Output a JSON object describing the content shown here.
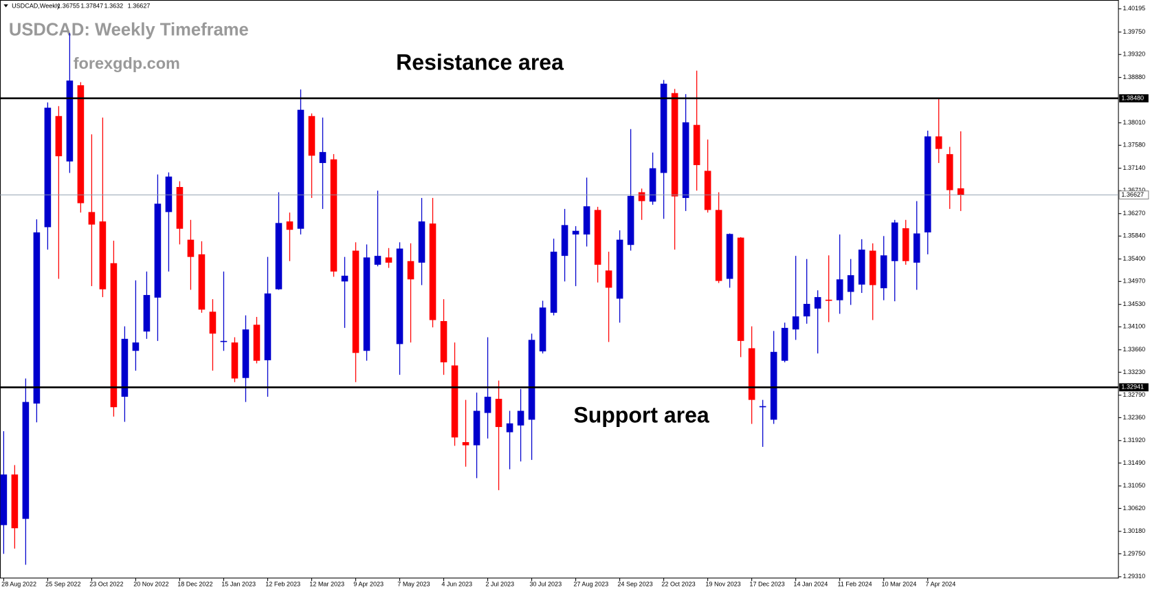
{
  "chart_data": {
    "type": "candlestick",
    "title": "USDCAD: Weekly Timeframe",
    "subtitle": "forexgdp.com",
    "symbol": "USDCAD,Weekly",
    "categories": [
      "28 Aug 2022",
      null,
      null,
      null,
      "25 Sep 2022",
      null,
      null,
      null,
      "23 Oct 2022",
      null,
      null,
      null,
      "20 Nov 2022",
      null,
      null,
      null,
      "18 Dec 2022",
      null,
      null,
      null,
      "15 Jan 2023",
      null,
      null,
      null,
      "12 Feb 2023",
      null,
      null,
      null,
      "12 Mar 2023",
      null,
      null,
      null,
      "9 Apr 2023",
      null,
      null,
      null,
      "7 May 2023",
      null,
      null,
      null,
      "4 Jun 2023",
      null,
      null,
      null,
      "2 Jul 2023",
      null,
      null,
      null,
      "30 Jul 2023",
      null,
      null,
      null,
      "27 Aug 2023",
      null,
      null,
      null,
      "24 Sep 2023",
      null,
      null,
      null,
      "22 Oct 2023",
      null,
      null,
      null,
      "19 Nov 2023",
      null,
      null,
      null,
      "17 Dec 2023",
      null,
      null,
      null,
      "14 Jan 2024",
      null,
      null,
      null,
      "11 Feb 2024",
      null,
      null,
      null,
      "10 Mar 2024",
      null,
      null,
      null,
      "7 Apr 2024",
      null,
      null,
      null
    ],
    "series": [
      {
        "up_color": "#0000cd",
        "down_color": "#ff0000",
        "open": [
          1.303,
          1.3127,
          1.3042,
          1.3263,
          1.3601,
          1.3814,
          1.3727,
          1.3873,
          1.363,
          1.3612,
          1.3532,
          1.3276,
          1.3364,
          1.3401,
          1.3466,
          1.363,
          1.3678,
          1.3577,
          1.3549,
          1.3439,
          1.3382,
          1.338,
          1.3312,
          1.3414,
          1.3346,
          1.3482,
          1.3612,
          1.3598,
          1.3814,
          1.3724,
          1.3731,
          1.3497,
          1.3556,
          1.3364,
          1.3529,
          1.3543,
          1.3377,
          1.3536,
          1.3533,
          1.3608,
          1.3421,
          1.3336,
          1.3189,
          1.3183,
          1.3245,
          1.3272,
          1.3208,
          1.3221,
          1.3232,
          1.3363,
          1.3437,
          1.3546,
          1.3587,
          1.3587,
          1.3634,
          1.3518,
          1.3464,
          1.3567,
          1.3668,
          1.365,
          1.3705,
          1.3858,
          1.3657,
          1.3797,
          1.3709,
          1.3634,
          1.3502,
          1.3581,
          1.3369,
          1.3257,
          1.3232,
          1.3345,
          1.3405,
          1.343,
          1.3445,
          1.3462,
          1.3461,
          1.3477,
          1.3491,
          1.3556,
          1.3484,
          1.3536,
          1.3599,
          1.3533,
          1.3591,
          1.3775,
          1.3741,
          1.36755
        ],
        "high": [
          1.321,
          1.3145,
          1.3311,
          1.3616,
          1.384,
          1.3833,
          1.3973,
          1.3879,
          1.3779,
          1.3811,
          1.3575,
          1.3411,
          1.3499,
          1.3516,
          1.3702,
          1.3706,
          1.3689,
          1.3615,
          1.3574,
          1.3463,
          1.3516,
          1.339,
          1.3432,
          1.3429,
          1.3544,
          1.3668,
          1.3629,
          1.3865,
          1.3819,
          1.3811,
          1.3741,
          1.3544,
          1.3572,
          1.3568,
          1.3671,
          1.3561,
          1.3572,
          1.357,
          1.3657,
          1.3657,
          1.3463,
          1.338,
          1.327,
          1.3284,
          1.339,
          1.3307,
          1.3249,
          1.3291,
          1.3397,
          1.346,
          1.3579,
          1.3636,
          1.3603,
          1.3696,
          1.364,
          1.3554,
          1.3595,
          1.3789,
          1.3675,
          1.3744,
          1.3883,
          1.3866,
          1.3856,
          1.3901,
          1.3769,
          1.3668,
          1.3589,
          1.3582,
          1.3411,
          1.327,
          1.3402,
          1.3418,
          1.3546,
          1.354,
          1.348,
          1.3547,
          1.3587,
          1.354,
          1.3578,
          1.357,
          1.3584,
          1.3615,
          1.3615,
          1.3651,
          1.3786,
          1.3847,
          1.3755,
          1.37847
        ],
        "low": [
          1.2975,
          1.2985,
          1.2954,
          1.3227,
          1.3558,
          1.3502,
          1.3705,
          1.3629,
          1.3488,
          1.3467,
          1.3238,
          1.3228,
          1.3326,
          1.3387,
          1.3383,
          1.3516,
          1.3568,
          1.3481,
          1.3437,
          1.3326,
          1.3364,
          1.3304,
          1.3266,
          1.334,
          1.3276,
          1.3481,
          1.3536,
          1.3587,
          1.3657,
          1.3636,
          1.3506,
          1.3408,
          1.3304,
          1.3345,
          1.3526,
          1.3523,
          1.3318,
          1.338,
          1.349,
          1.3409,
          1.3318,
          1.3182,
          1.3142,
          1.312,
          1.3196,
          1.3097,
          1.3137,
          1.3152,
          1.3155,
          1.3359,
          1.3432,
          1.3497,
          1.3488,
          1.3564,
          1.3495,
          1.3381,
          1.3418,
          1.3556,
          1.3615,
          1.3644,
          1.3617,
          1.3558,
          1.3632,
          1.3671,
          1.3629,
          1.3494,
          1.3485,
          1.3352,
          1.3224,
          1.318,
          1.3224,
          1.3342,
          1.3385,
          1.3416,
          1.3359,
          1.3419,
          1.3435,
          1.3452,
          1.3475,
          1.3423,
          1.3461,
          1.3459,
          1.3529,
          1.3481,
          1.3549,
          1.3724,
          1.3636,
          1.3632
        ],
        "close": [
          1.3127,
          1.3024,
          1.3266,
          1.3591,
          1.383,
          1.3737,
          1.3882,
          1.3647,
          1.3606,
          1.3482,
          1.3256,
          1.3387,
          1.338,
          1.3471,
          1.3646,
          1.3698,
          1.3598,
          1.3544,
          1.3443,
          1.3397,
          1.3383,
          1.3311,
          1.3405,
          1.3345,
          1.3474,
          1.3609,
          1.3596,
          1.3826,
          1.3738,
          1.3745,
          1.3516,
          1.3508,
          1.336,
          1.3543,
          1.3546,
          1.3533,
          1.356,
          1.3501,
          1.3612,
          1.3423,
          1.3342,
          1.3198,
          1.3183,
          1.3249,
          1.3276,
          1.3218,
          1.3225,
          1.3249,
          1.3385,
          1.3447,
          1.3554,
          1.3605,
          1.3594,
          1.3641,
          1.3529,
          1.3485,
          1.3577,
          1.3661,
          1.3651,
          1.3714,
          1.3876,
          1.366,
          1.3802,
          1.372,
          1.3634,
          1.3498,
          1.3588,
          1.3383,
          1.327,
          1.3258,
          1.3362,
          1.3408,
          1.343,
          1.3454,
          1.3467,
          1.3461,
          1.3501,
          1.3509,
          1.3558,
          1.349,
          1.3547,
          1.361,
          1.3536,
          1.3589,
          1.3775,
          1.3751,
          1.3672,
          1.36627
        ]
      }
    ],
    "ylim": [
      1.29285,
      1.40322
    ],
    "yticks": [
      1.40195,
      {
        "value": 1.3975,
        "label": "1.39750"
      },
      {
        "value": 1.3932,
        "label": "1.39320"
      },
      {
        "value": 1.3888,
        "label": "1.38880"
      },
      {
        "value": 1.3801,
        "label": "1.38010"
      },
      {
        "value": 1.3758,
        "label": "1.37580"
      },
      {
        "value": 1.3714,
        "label": "1.37140"
      },
      {
        "value": 1.3671,
        "label": "1.36710"
      },
      {
        "value": 1.3627,
        "label": "1.36270"
      },
      {
        "value": 1.3584,
        "label": "1.35840"
      },
      {
        "value": 1.354,
        "label": "1.35400"
      },
      {
        "value": 1.3497,
        "label": "1.34970"
      },
      {
        "value": 1.3453,
        "label": "1.34530"
      },
      {
        "value": 1.341,
        "label": "1.34100"
      },
      {
        "value": 1.3366,
        "label": "1.33660"
      },
      {
        "value": 1.3323,
        "label": "1.33230"
      },
      {
        "value": 1.3279,
        "label": "1.32790"
      },
      {
        "value": 1.3236,
        "label": "1.32360"
      },
      {
        "value": 1.3192,
        "label": "1.31920"
      },
      {
        "value": 1.3149,
        "label": "1.31490"
      },
      {
        "value": 1.3105,
        "label": "1.31050"
      },
      {
        "value": 1.3062,
        "label": "1.30620"
      },
      {
        "value": 1.3018,
        "label": "1.30180"
      },
      {
        "value": 1.2975,
        "label": "1.29750"
      },
      {
        "value": 1.2931,
        "label": "1.29310"
      }
    ],
    "levels": [
      {
        "value": 1.3848,
        "label": "1.38480",
        "text": "Resistance area"
      },
      {
        "value": 1.32941,
        "text": "Support area"
      }
    ],
    "grid": false
  }
}
